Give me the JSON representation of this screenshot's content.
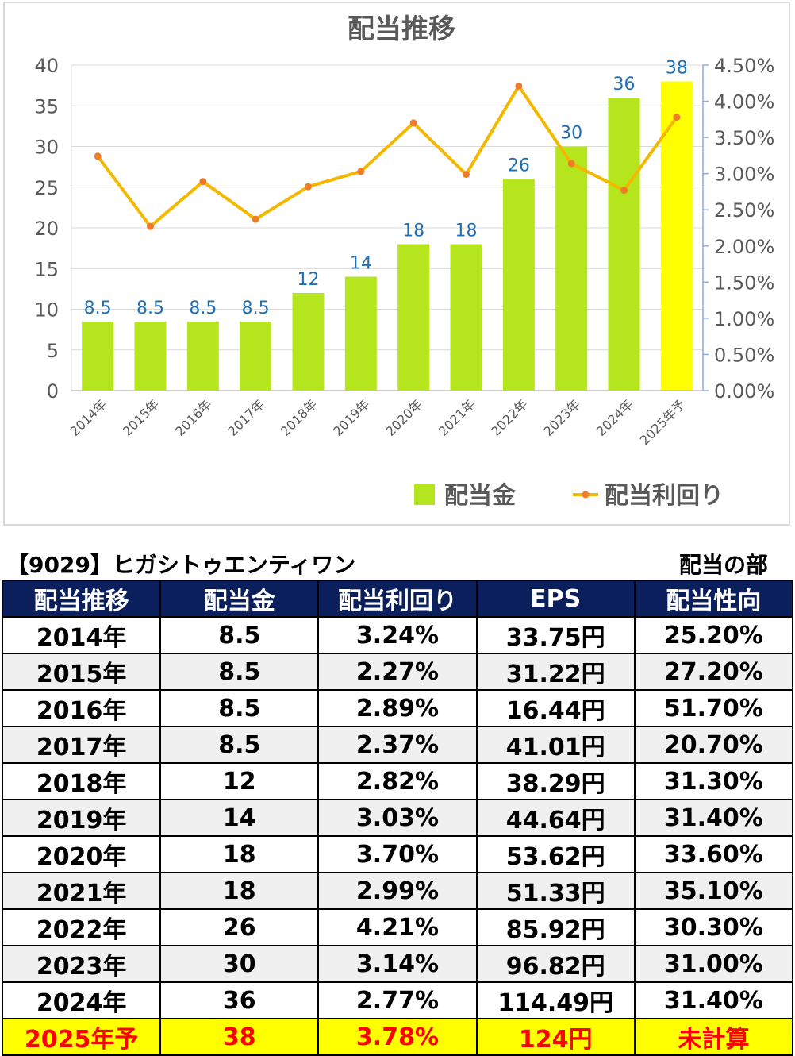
{
  "chart_data": {
    "type": "bar+line",
    "title": "配当推移",
    "categories": [
      "2014年",
      "2015年",
      "2016年",
      "2017年",
      "2018年",
      "2019年",
      "2020年",
      "2021年",
      "2022年",
      "2023年",
      "2024年",
      "2025年予"
    ],
    "series": [
      {
        "name": "配当金",
        "type": "bar",
        "axis": "left",
        "values": [
          8.5,
          8.5,
          8.5,
          8.5,
          12,
          14,
          18,
          18,
          26,
          30,
          36,
          38
        ],
        "labels": [
          "8.5",
          "8.5",
          "8.5",
          "8.5",
          "12",
          "14",
          "18",
          "18",
          "26",
          "30",
          "36",
          "38"
        ],
        "color": "#b5e61d",
        "highlight_last_color": "#ffff00"
      },
      {
        "name": "配当利回り",
        "type": "line",
        "axis": "right",
        "values": [
          3.24,
          2.27,
          2.89,
          2.37,
          2.82,
          3.03,
          3.7,
          2.99,
          4.21,
          3.14,
          2.77,
          3.78
        ],
        "color": "#f5b800",
        "marker_color": "#f07c2a"
      }
    ],
    "y_left": {
      "min": 0,
      "max": 40,
      "step": 5,
      "ticks": [
        "0",
        "5",
        "10",
        "15",
        "20",
        "25",
        "30",
        "35",
        "40"
      ]
    },
    "y_right": {
      "min": 0,
      "max": 4.5,
      "step": 0.5,
      "ticks": [
        "0.00%",
        "0.50%",
        "1.00%",
        "1.50%",
        "2.00%",
        "2.50%",
        "3.00%",
        "3.50%",
        "4.00%",
        "4.50%"
      ]
    },
    "grid": true,
    "legend_position": "bottom-right",
    "colors": {
      "label": "#1f6fb5",
      "axis_text": "#595959",
      "grid": "#d9d9d9",
      "right_axis": "#8faadc"
    }
  },
  "caption": {
    "ticker": "【9029】ヒガシトゥエンティワン",
    "section": "配当の部"
  },
  "table": {
    "headers": [
      "配当推移",
      "配当金",
      "配当利回り",
      "EPS",
      "配当性向"
    ],
    "rows": [
      [
        "2014年",
        "8.5",
        "3.24%",
        "33.75円",
        "25.20%"
      ],
      [
        "2015年",
        "8.5",
        "2.27%",
        "31.22円",
        "27.20%"
      ],
      [
        "2016年",
        "8.5",
        "2.89%",
        "16.44円",
        "51.70%"
      ],
      [
        "2017年",
        "8.5",
        "2.37%",
        "41.01円",
        "20.70%"
      ],
      [
        "2018年",
        "12",
        "2.82%",
        "38.29円",
        "31.30%"
      ],
      [
        "2019年",
        "14",
        "3.03%",
        "44.64円",
        "31.40%"
      ],
      [
        "2020年",
        "18",
        "3.70%",
        "53.62円",
        "33.60%"
      ],
      [
        "2021年",
        "18",
        "2.99%",
        "51.33円",
        "35.10%"
      ],
      [
        "2022年",
        "26",
        "4.21%",
        "85.92円",
        "30.30%"
      ],
      [
        "2023年",
        "30",
        "3.14%",
        "96.82円",
        "31.00%"
      ],
      [
        "2024年",
        "36",
        "2.77%",
        "114.49円",
        "31.40%"
      ],
      [
        "2025年予",
        "38",
        "3.78%",
        "124円",
        "未計算"
      ]
    ]
  }
}
